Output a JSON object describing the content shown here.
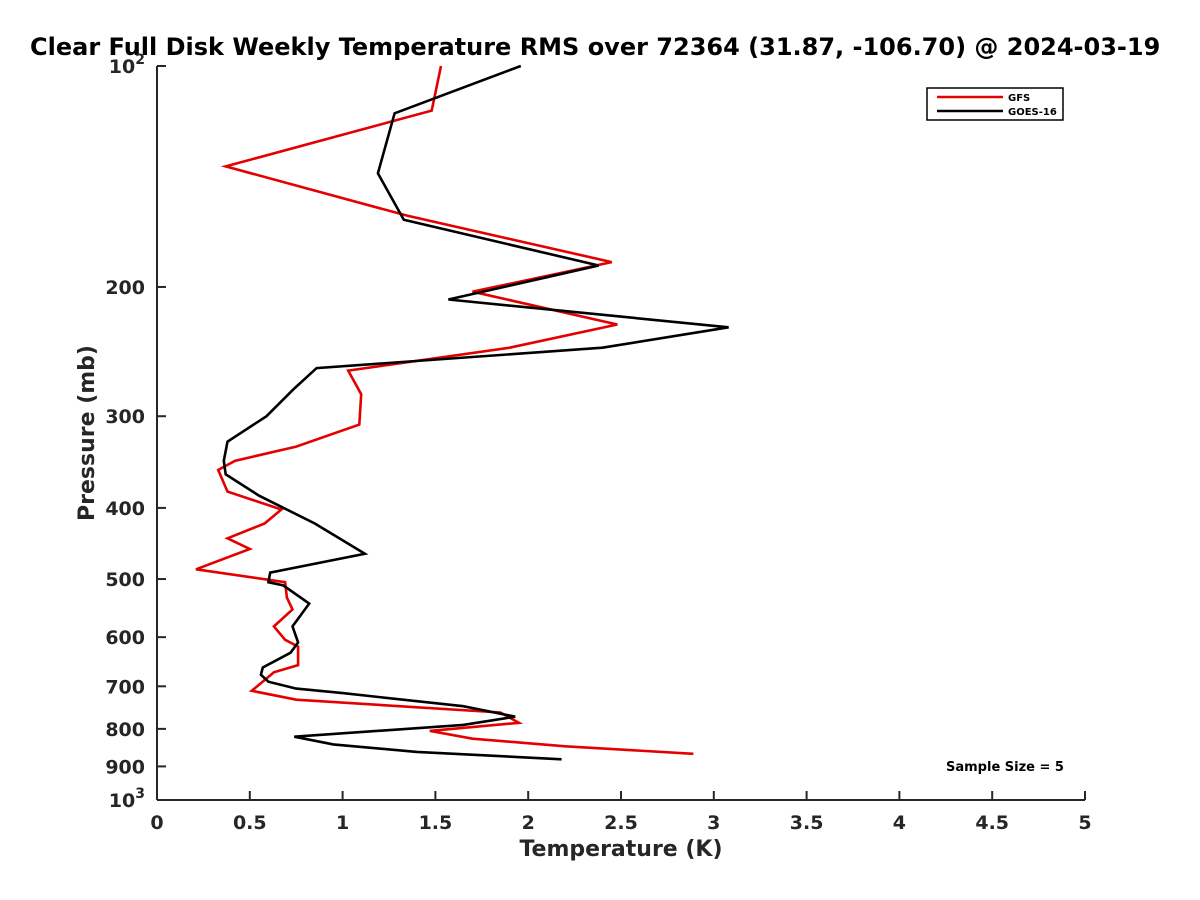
{
  "chart_data": {
    "type": "line",
    "title": "Clear Full Disk Weekly Temperature RMS over 72364 (31.87, -106.70) @ 2024-03-19",
    "xlabel": "Temperature (K)",
    "ylabel": "Pressure (mb)",
    "xlim": [
      0,
      5
    ],
    "ylim": [
      100,
      1000
    ],
    "yscale": "log",
    "y_reversed": true,
    "grid": false,
    "legend_position": "top-right",
    "x_ticks": [
      "0",
      "0.5",
      "1",
      "1.5",
      "2",
      "2.5",
      "3",
      "3.5",
      "4",
      "4.5",
      "5"
    ],
    "y_ticks": [
      {
        "value": 100,
        "label": "10",
        "sup": "2"
      },
      {
        "value": 200,
        "label": "200",
        "sup": ""
      },
      {
        "value": 300,
        "label": "300",
        "sup": ""
      },
      {
        "value": 400,
        "label": "400",
        "sup": ""
      },
      {
        "value": 500,
        "label": "500",
        "sup": ""
      },
      {
        "value": 600,
        "label": "600",
        "sup": ""
      },
      {
        "value": 700,
        "label": "700",
        "sup": ""
      },
      {
        "value": 800,
        "label": "800",
        "sup": ""
      },
      {
        "value": 900,
        "label": "900",
        "sup": ""
      },
      {
        "value": 1000,
        "label": "10",
        "sup": "3"
      }
    ],
    "series": [
      {
        "name": "GFS",
        "color": "#e50000",
        "points": [
          [
            1.53,
            100
          ],
          [
            1.48,
            115
          ],
          [
            0.37,
            137
          ],
          [
            1.35,
            160
          ],
          [
            2.45,
            185
          ],
          [
            1.7,
            203
          ],
          [
            2.48,
            225
          ],
          [
            1.9,
            242
          ],
          [
            1.03,
            260
          ],
          [
            1.1,
            280
          ],
          [
            1.09,
            308
          ],
          [
            0.75,
            330
          ],
          [
            0.42,
            345
          ],
          [
            0.33,
            355
          ],
          [
            0.38,
            380
          ],
          [
            0.67,
            402
          ],
          [
            0.58,
            420
          ],
          [
            0.38,
            440
          ],
          [
            0.5,
            455
          ],
          [
            0.21,
            485
          ],
          [
            0.69,
            505
          ],
          [
            0.7,
            530
          ],
          [
            0.73,
            550
          ],
          [
            0.63,
            580
          ],
          [
            0.69,
            605
          ],
          [
            0.76,
            618
          ],
          [
            0.76,
            655
          ],
          [
            0.63,
            670
          ],
          [
            0.51,
            710
          ],
          [
            0.75,
            730
          ],
          [
            1.85,
            760
          ],
          [
            1.95,
            785
          ],
          [
            1.47,
            805
          ],
          [
            1.7,
            825
          ],
          [
            2.2,
            845
          ],
          [
            2.89,
            865
          ]
        ]
      },
      {
        "name": "GOES-16",
        "color": "#000000",
        "points": [
          [
            1.96,
            100
          ],
          [
            1.28,
            116
          ],
          [
            1.19,
            140
          ],
          [
            1.33,
            162
          ],
          [
            2.38,
            187
          ],
          [
            1.57,
            208
          ],
          [
            3.08,
            227
          ],
          [
            2.4,
            242
          ],
          [
            0.86,
            258
          ],
          [
            0.74,
            275
          ],
          [
            0.59,
            300
          ],
          [
            0.38,
            325
          ],
          [
            0.36,
            345
          ],
          [
            0.37,
            360
          ],
          [
            0.55,
            385
          ],
          [
            0.85,
            420
          ],
          [
            1.12,
            462
          ],
          [
            0.61,
            490
          ],
          [
            0.6,
            505
          ],
          [
            0.68,
            510
          ],
          [
            0.82,
            540
          ],
          [
            0.73,
            580
          ],
          [
            0.76,
            610
          ],
          [
            0.72,
            630
          ],
          [
            0.57,
            660
          ],
          [
            0.56,
            675
          ],
          [
            0.6,
            690
          ],
          [
            0.75,
            705
          ],
          [
            1.0,
            715
          ],
          [
            1.65,
            745
          ],
          [
            1.93,
            770
          ],
          [
            1.65,
            790
          ],
          [
            0.74,
            820
          ],
          [
            0.95,
            840
          ],
          [
            1.4,
            860
          ],
          [
            2.18,
            880
          ]
        ]
      }
    ],
    "annotation": "Sample Size = 5"
  }
}
